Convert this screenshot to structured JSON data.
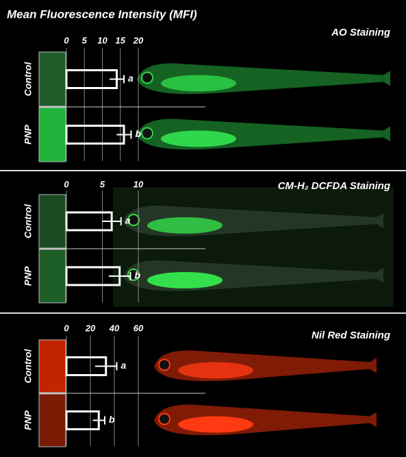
{
  "figure_title": "Mean Fluorescence Intensity (MFI)",
  "chart_data": [
    {
      "type": "bar",
      "orientation": "horizontal",
      "title": "AO Staining",
      "categories": [
        "Control",
        "PNP"
      ],
      "values": [
        14,
        16
      ],
      "errors": [
        2,
        2
      ],
      "labels": [
        "a",
        "b"
      ],
      "colors": [
        "#1e5c2a",
        "#20b23a"
      ],
      "xlim": [
        0,
        20
      ],
      "xticks": [
        0,
        5,
        10,
        15,
        20
      ],
      "grid": true
    },
    {
      "type": "bar",
      "orientation": "horizontal",
      "title": "CM-H₂ DCFDA Staining",
      "categories": [
        "Control",
        "PNP"
      ],
      "values": [
        6.3,
        7.4
      ],
      "errors": [
        1.3,
        1.5
      ],
      "labels": [
        "a",
        "b"
      ],
      "colors": [
        "#1a4a22",
        "#1d5f27"
      ],
      "xlim": [
        0,
        10
      ],
      "xticks": [
        0,
        5,
        10
      ],
      "grid": true
    },
    {
      "type": "bar",
      "orientation": "horizontal",
      "title": "Nil Red Staining",
      "categories": [
        "Control",
        "PNP"
      ],
      "values": [
        33,
        27
      ],
      "errors": [
        9,
        5
      ],
      "labels": [
        "a",
        "b"
      ],
      "colors": [
        "#c22400",
        "#7a1c04"
      ],
      "xlim": [
        0,
        60
      ],
      "xticks": [
        0,
        20,
        40,
        60
      ],
      "grid": true
    }
  ]
}
